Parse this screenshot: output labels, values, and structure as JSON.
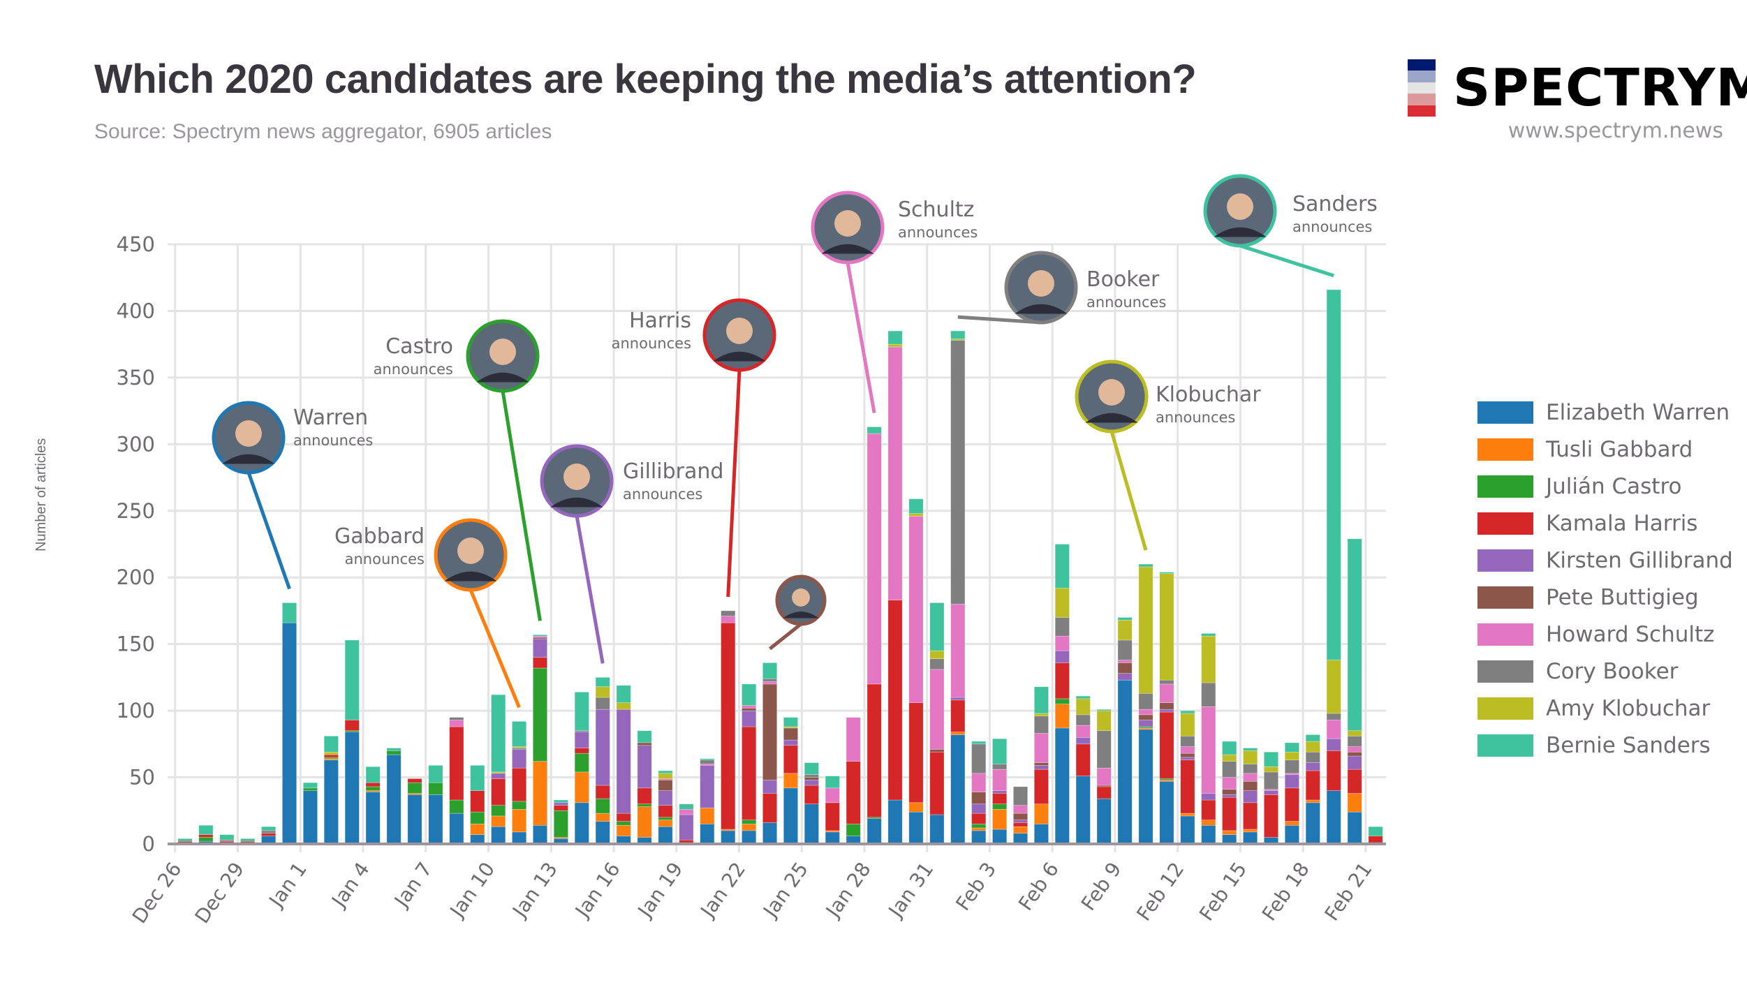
{
  "header": {
    "title": "Which 2020 candidates are keeping the media’s attention?",
    "subtitle": "Source: Spectrym news aggregator, 6905 articles"
  },
  "brand": {
    "name": "SPECTRYM",
    "url": "www.spectrym.news",
    "flag_colors": [
      "#00186e",
      "#9ba6c8",
      "#e4e4e4",
      "#dc9a9c",
      "#dc2d35"
    ]
  },
  "chart_data": {
    "type": "bar",
    "stacked": true,
    "title": "Which 2020 candidates are keeping the media’s attention?",
    "xlabel": "",
    "ylabel": "Number of articles",
    "ylim": [
      0,
      450
    ],
    "yticks": [
      0,
      50,
      100,
      150,
      200,
      250,
      300,
      350,
      400,
      450
    ],
    "grid": true,
    "legend_position": "right",
    "xtick_labels": [
      "Dec 26",
      "Dec 29",
      "Jan 1",
      "Jan 4",
      "Jan 7",
      "Jan 10",
      "Jan 13",
      "Jan 16",
      "Jan 19",
      "Jan 22",
      "Jan 25",
      "Jan 28",
      "Jan 31",
      "Feb 3",
      "Feb 6",
      "Feb 9",
      "Feb 12",
      "Feb 15",
      "Feb 18",
      "Feb 21"
    ],
    "categories": [
      "Dec 26",
      "Dec 27",
      "Dec 28",
      "Dec 29",
      "Dec 30",
      "Dec 31",
      "Jan 1",
      "Jan 2",
      "Jan 3",
      "Jan 4",
      "Jan 5",
      "Jan 6",
      "Jan 7",
      "Jan 8",
      "Jan 9",
      "Jan 10",
      "Jan 11",
      "Jan 12",
      "Jan 13",
      "Jan 14",
      "Jan 15",
      "Jan 16",
      "Jan 17",
      "Jan 18",
      "Jan 19",
      "Jan 20",
      "Jan 21",
      "Jan 22",
      "Jan 23",
      "Jan 24",
      "Jan 25",
      "Jan 26",
      "Jan 27",
      "Jan 28",
      "Jan 29",
      "Jan 30",
      "Jan 31",
      "Feb 1",
      "Feb 2",
      "Feb 3",
      "Feb 4",
      "Feb 5",
      "Feb 6",
      "Feb 7",
      "Feb 8",
      "Feb 9",
      "Feb 10",
      "Feb 11",
      "Feb 12",
      "Feb 13",
      "Feb 14",
      "Feb 15",
      "Feb 16",
      "Feb 17",
      "Feb 18",
      "Feb 19",
      "Feb 20",
      "Feb 21"
    ],
    "series": [
      {
        "name": "Elizabeth Warren",
        "color": "#1f77b4",
        "values": [
          1,
          2,
          1,
          1,
          6,
          166,
          40,
          63,
          84,
          39,
          67,
          37,
          37,
          23,
          7,
          13,
          9,
          14,
          4,
          31,
          17,
          6,
          5,
          13,
          1,
          15,
          10,
          10,
          16,
          42,
          30,
          9,
          6,
          19,
          33,
          24,
          22,
          82,
          10,
          11,
          8,
          15,
          87,
          51,
          34,
          123,
          86,
          47,
          21,
          14,
          7,
          9,
          5,
          14,
          31,
          40,
          24,
          1
        ]
      },
      {
        "name": "Tusli Gabbard",
        "color": "#ff7f0e",
        "values": [
          0,
          0,
          0,
          0,
          0,
          0,
          0,
          1,
          0,
          1,
          0,
          1,
          0,
          0,
          8,
          8,
          17,
          48,
          1,
          23,
          6,
          8,
          23,
          5,
          0,
          12,
          1,
          5,
          0,
          11,
          0,
          1,
          0,
          0,
          0,
          7,
          0,
          2,
          2,
          15,
          5,
          15,
          18,
          0,
          0,
          0,
          1,
          1,
          2,
          4,
          3,
          2,
          0,
          3,
          2,
          0,
          14,
          0
        ]
      },
      {
        "name": "Julián Castro",
        "color": "#2ca02c",
        "values": [
          0,
          3,
          0,
          0,
          0,
          0,
          2,
          1,
          1,
          3,
          3,
          8,
          9,
          10,
          9,
          8,
          6,
          70,
          20,
          14,
          11,
          3,
          2,
          2,
          0,
          0,
          0,
          3,
          0,
          0,
          0,
          0,
          9,
          1,
          0,
          0,
          0,
          0,
          3,
          4,
          0,
          0,
          4,
          0,
          0,
          0,
          1,
          1,
          0,
          0,
          0,
          0,
          0,
          0,
          0,
          0,
          0,
          0
        ]
      },
      {
        "name": "Kamala Harris",
        "color": "#d62728",
        "values": [
          1,
          2,
          1,
          1,
          2,
          0,
          0,
          2,
          8,
          3,
          0,
          3,
          0,
          55,
          16,
          20,
          25,
          8,
          4,
          4,
          10,
          6,
          12,
          9,
          2,
          0,
          155,
          70,
          22,
          21,
          14,
          21,
          47,
          100,
          150,
          75,
          47,
          24,
          8,
          8,
          3,
          26,
          27,
          24,
          9,
          0,
          0,
          50,
          40,
          15,
          25,
          20,
          32,
          25,
          22,
          30,
          18,
          5
        ]
      },
      {
        "name": "Kirsten Gillibrand",
        "color": "#9467bd",
        "values": [
          0,
          0,
          0,
          0,
          0,
          0,
          0,
          0,
          0,
          0,
          0,
          0,
          0,
          0,
          0,
          4,
          14,
          14,
          2,
          12,
          57,
          78,
          32,
          11,
          19,
          32,
          0,
          12,
          10,
          4,
          4,
          0,
          0,
          0,
          0,
          0,
          0,
          2,
          7,
          2,
          2,
          3,
          9,
          5,
          0,
          5,
          5,
          2,
          2,
          5,
          2,
          9,
          3,
          10,
          6,
          9,
          10,
          0
        ]
      },
      {
        "name": "Pete Buttigieg",
        "color": "#8c564b",
        "values": [
          0,
          0,
          0,
          0,
          0,
          0,
          0,
          0,
          0,
          0,
          0,
          0,
          0,
          0,
          0,
          0,
          0,
          1,
          0,
          0,
          0,
          0,
          2,
          8,
          0,
          0,
          0,
          2,
          72,
          9,
          2,
          0,
          0,
          0,
          0,
          0,
          2,
          0,
          9,
          0,
          5,
          2,
          0,
          0,
          1,
          8,
          4,
          5,
          3,
          0,
          4,
          7,
          0,
          0,
          0,
          0,
          3,
          0
        ]
      },
      {
        "name": "Howard Schultz",
        "color": "#e377c3",
        "values": [
          0,
          0,
          0,
          0,
          0,
          0,
          0,
          0,
          0,
          0,
          0,
          0,
          0,
          5,
          0,
          0,
          0,
          1,
          0,
          0,
          0,
          0,
          0,
          1,
          4,
          1,
          5,
          2,
          2,
          0,
          0,
          11,
          33,
          188,
          190,
          140,
          60,
          70,
          14,
          16,
          6,
          22,
          11,
          9,
          13,
          2,
          4,
          14,
          5,
          65,
          9,
          6,
          1,
          1,
          0,
          14,
          4,
          0
        ]
      },
      {
        "name": "Cory Booker",
        "color": "#7f7f7f",
        "values": [
          0,
          0,
          1,
          0,
          2,
          0,
          0,
          0,
          0,
          0,
          0,
          0,
          0,
          2,
          0,
          0,
          1,
          0,
          0,
          1,
          9,
          0,
          0,
          0,
          0,
          3,
          4,
          0,
          2,
          0,
          2,
          0,
          0,
          0,
          0,
          0,
          8,
          198,
          22,
          4,
          14,
          13,
          14,
          8,
          28,
          15,
          12,
          3,
          8,
          18,
          12,
          7,
          13,
          10,
          8,
          5,
          8,
          0
        ]
      },
      {
        "name": "Amy Klobuchar",
        "color": "#bcbd22",
        "values": [
          0,
          0,
          0,
          0,
          0,
          0,
          0,
          2,
          0,
          0,
          0,
          0,
          0,
          0,
          0,
          1,
          1,
          0,
          0,
          0,
          8,
          5,
          0,
          4,
          0,
          0,
          0,
          0,
          0,
          1,
          0,
          0,
          0,
          0,
          2,
          2,
          6,
          1,
          0,
          0,
          0,
          2,
          22,
          12,
          15,
          15,
          95,
          80,
          17,
          35,
          5,
          10,
          4,
          6,
          8,
          40,
          4,
          0
        ]
      },
      {
        "name": "Bernie Sanders",
        "color": "#3fc39f",
        "values": [
          2,
          7,
          4,
          2,
          3,
          15,
          4,
          12,
          60,
          12,
          2,
          0,
          13,
          0,
          19,
          58,
          19,
          1,
          2,
          29,
          7,
          13,
          9,
          2,
          4,
          1,
          0,
          16,
          12,
          7,
          9,
          9,
          0,
          5,
          10,
          11,
          36,
          6,
          2,
          19,
          0,
          20,
          33,
          2,
          1,
          2,
          2,
          1,
          2,
          2,
          10,
          2,
          11,
          7,
          5,
          278,
          144,
          7
        ]
      }
    ],
    "annotations": [
      {
        "candidate": "Warren",
        "text": "announces",
        "date": "Dec 31",
        "color": "#1f77b4",
        "label_side": "right"
      },
      {
        "candidate": "Gabbard",
        "text": "announces",
        "date": "Jan 11",
        "color": "#ff7f0e",
        "label_side": "left"
      },
      {
        "candidate": "Castro",
        "text": "announces",
        "date": "Jan 12",
        "color": "#2ca02c",
        "label_side": "left"
      },
      {
        "candidate": "Gillibrand",
        "text": "announces",
        "date": "Jan 15",
        "color": "#9467bd",
        "label_side": "right"
      },
      {
        "candidate": "Harris",
        "text": "announces",
        "date": "Jan 21",
        "color": "#d62728",
        "label_side": "left"
      },
      {
        "candidate": "",
        "text": "",
        "date": "Jan 23",
        "color": "#8c564b",
        "label_side": "none"
      },
      {
        "candidate": "Schultz",
        "text": "announces",
        "date": "Jan 28",
        "color": "#e377c3",
        "label_side": "right"
      },
      {
        "candidate": "Booker",
        "text": "announces",
        "date": "Feb 1",
        "color": "#7f7f7f",
        "label_side": "right"
      },
      {
        "candidate": "Klobuchar",
        "text": "announces",
        "date": "Feb 10",
        "color": "#bcbd22",
        "label_side": "right"
      },
      {
        "candidate": "Sanders",
        "text": "announces",
        "date": "Feb 19",
        "color": "#3fc39f",
        "label_side": "right"
      }
    ]
  }
}
